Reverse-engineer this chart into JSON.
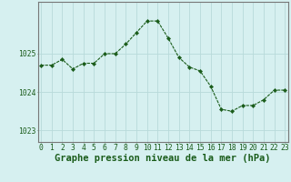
{
  "x": [
    0,
    1,
    2,
    3,
    4,
    5,
    6,
    7,
    8,
    9,
    10,
    11,
    12,
    13,
    14,
    15,
    16,
    17,
    18,
    19,
    20,
    21,
    22,
    23
  ],
  "y": [
    1024.7,
    1024.7,
    1024.85,
    1024.6,
    1024.75,
    1024.75,
    1025.0,
    1025.0,
    1025.25,
    1025.55,
    1025.85,
    1025.85,
    1025.4,
    1024.9,
    1024.65,
    1024.55,
    1024.15,
    1023.55,
    1023.5,
    1023.65,
    1023.65,
    1023.8,
    1024.05,
    1024.05
  ],
  "line_color": "#1a5c1a",
  "marker": "D",
  "marker_size": 2.2,
  "background_color": "#d6f0f0",
  "grid_color": "#b8dada",
  "xlabel": "Graphe pression niveau de la mer (hPa)",
  "xlabel_fontsize": 7.5,
  "ylim": [
    1022.7,
    1026.35
  ],
  "yticks": [
    1023,
    1024,
    1025
  ],
  "xticks": [
    0,
    1,
    2,
    3,
    4,
    5,
    6,
    7,
    8,
    9,
    10,
    11,
    12,
    13,
    14,
    15,
    16,
    17,
    18,
    19,
    20,
    21,
    22,
    23
  ],
  "tick_fontsize": 5.8,
  "border_color": "#777777"
}
